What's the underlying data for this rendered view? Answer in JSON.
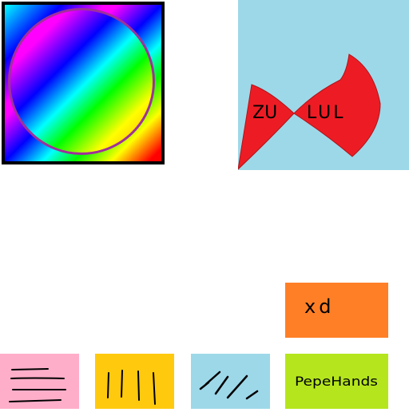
{
  "top_right": {
    "left_word": "ZU",
    "right_word": "LUL"
  },
  "orange_box": {
    "label": "xd"
  },
  "tiles": {
    "green_label": "PepeHands"
  },
  "colors": {
    "blue": "#9dd8e9",
    "bowtie_red": "#ed1c24",
    "orange": "#ff7f27",
    "pink": "#ffaec9",
    "yellow": "#ffc90e",
    "green": "#b5e61d"
  }
}
